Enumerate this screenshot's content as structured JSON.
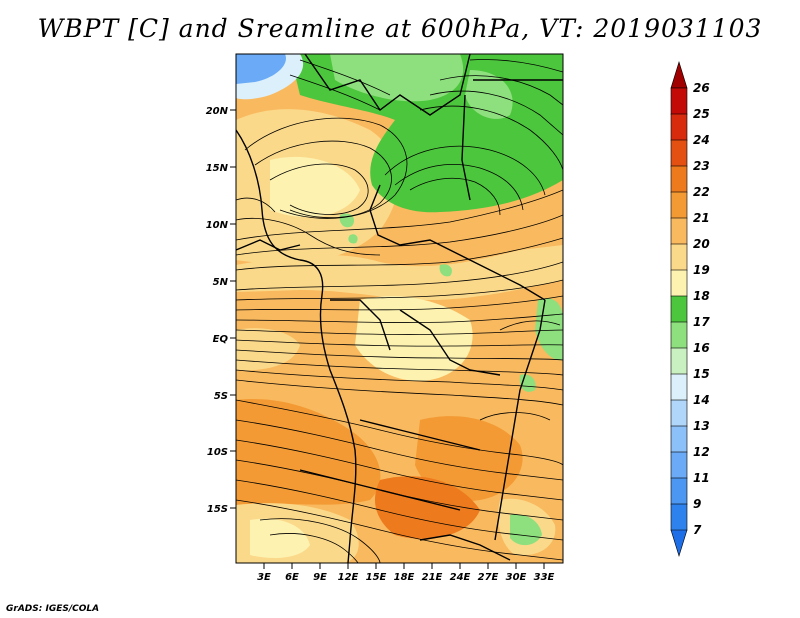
{
  "title": "WBPT [C] and Sreamline at 600hPa, VT: 2019031103",
  "footer": "GrADS: IGES/COLA",
  "map": {
    "lat_ticks": [
      "20N",
      "15N",
      "10N",
      "5N",
      "EQ",
      "5S",
      "10S",
      "15S"
    ],
    "lon_ticks": [
      "3E",
      "6E",
      "9E",
      "12E",
      "15E",
      "18E",
      "21E",
      "24E",
      "27E",
      "30E",
      "33E"
    ]
  },
  "colorbar": {
    "levels": [
      "7",
      "9",
      "11",
      "12",
      "13",
      "14",
      "15",
      "16",
      "17",
      "18",
      "19",
      "20",
      "21",
      "22",
      "23",
      "24",
      "25",
      "26"
    ],
    "colors": [
      "#1e6ee8",
      "#2e82ee",
      "#4b97f2",
      "#6aaaf6",
      "#8cc0f8",
      "#b0d6fa",
      "#dcf0fc",
      "#c8f0c0",
      "#8ee07e",
      "#4cc63c",
      "#fdf2b0",
      "#fbd98a",
      "#f9b95e",
      "#f39a34",
      "#ed7a1c",
      "#e44f12",
      "#d82a0c",
      "#c40a06",
      "#a00000"
    ]
  }
}
